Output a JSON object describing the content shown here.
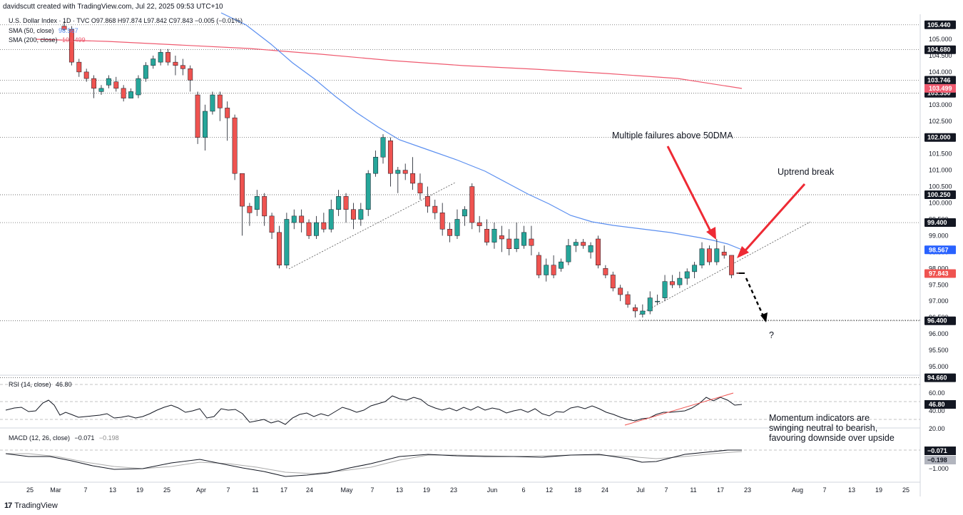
{
  "header": {
    "credit": "davidscutt created with TradingView.com, Jul 22, 2025 09:53 UTC+10",
    "symbol_line": "U.S. Dollar Index · 1D · TVC  O97.868  H97.874  L97.842  C97.843  −0.005 (−0.01%)",
    "sma50_label": "SMA (50, close)",
    "sma50_value": "98.567",
    "sma200_label": "SMA (200, close)",
    "sma200_value": "103.499"
  },
  "rsi_legend": "RSI (14, close)",
  "rsi_value": "46.80",
  "macd_legend": "MACD (12, 26, close)",
  "macd_value": "−0.071",
  "macd_signal_value": "−0.198",
  "annotations": {
    "failures": "Multiple failures above 50DMA",
    "uptrend": "Uptrend break",
    "question": "?",
    "momentum_1": "Momentum indicators are",
    "momentum_2": "swinging neutral to bearish,",
    "momentum_3": "favouring downside over upside"
  },
  "brand": "TradingView",
  "colors": {
    "up": "#26a69a",
    "down": "#ef5350",
    "sma50": "#5b8ff0",
    "sma200": "#ef5a6f",
    "annotation_arrow": "#ee2a34"
  },
  "chart_data": {
    "type": "candlestick",
    "title": "U.S. Dollar Index",
    "y_axis_ticks": [
      "105.000",
      "104.500",
      "104.000",
      "103.500",
      "103.000",
      "102.500",
      "102.000",
      "101.500",
      "101.000",
      "100.500",
      "100.000",
      "99.500",
      "99.000",
      "98.500",
      "98.000",
      "97.500",
      "97.000",
      "96.500",
      "96.000",
      "95.500",
      "95.000"
    ],
    "price_levels": [
      "105.440",
      "104.680",
      "103.746",
      "103.350",
      "102.000",
      "100.250",
      "99.400",
      "96.400",
      "94.660"
    ],
    "current_price": "97.843",
    "sma50_value": "98.567",
    "sma200_value": "103.499",
    "x_axis_labels": [
      "25",
      "Mar",
      "7",
      "13",
      "19",
      "25",
      "Apr",
      "7",
      "11",
      "17",
      "24",
      "May",
      "7",
      "13",
      "19",
      "23",
      "Jun",
      "6",
      "12",
      "18",
      "24",
      "Jul",
      "7",
      "11",
      "17",
      "23",
      "Aug",
      "7",
      "13",
      "19",
      "25"
    ],
    "candles": [
      [
        105.4,
        105.3,
        105.55,
        105.25
      ],
      [
        105.3,
        104.3,
        105.4,
        104.2
      ],
      [
        104.3,
        104.0,
        104.4,
        103.85
      ],
      [
        104.0,
        103.8,
        104.1,
        103.7
      ],
      [
        103.8,
        103.5,
        103.9,
        103.2
      ],
      [
        103.4,
        103.5,
        103.6,
        103.3
      ],
      [
        103.6,
        103.8,
        103.9,
        103.5
      ],
      [
        103.7,
        103.5,
        103.85,
        103.4
      ],
      [
        103.5,
        103.2,
        103.6,
        103.1
      ],
      [
        103.2,
        103.4,
        103.5,
        103.2
      ],
      [
        103.3,
        103.8,
        103.9,
        103.2
      ],
      [
        103.8,
        104.2,
        104.3,
        103.7
      ],
      [
        104.2,
        104.4,
        104.5,
        104.1
      ],
      [
        104.3,
        104.6,
        104.7,
        104.2
      ],
      [
        104.6,
        104.3,
        104.7,
        104.2
      ],
      [
        104.3,
        104.2,
        104.5,
        103.9
      ],
      [
        104.2,
        104.1,
        104.4,
        103.9
      ],
      [
        104.1,
        103.75,
        104.2,
        103.4
      ],
      [
        103.3,
        102.0,
        103.4,
        101.8
      ],
      [
        102.0,
        102.8,
        103.0,
        101.6
      ],
      [
        102.8,
        103.3,
        103.4,
        102.7
      ],
      [
        103.3,
        102.9,
        103.4,
        102.5
      ],
      [
        102.9,
        102.6,
        103.1,
        101.9
      ],
      [
        102.6,
        100.9,
        102.7,
        100.7
      ],
      [
        100.9,
        99.9,
        100.8,
        99.0
      ],
      [
        99.9,
        99.7,
        100.0,
        99.3
      ],
      [
        99.8,
        100.2,
        100.4,
        99.6
      ],
      [
        100.2,
        99.6,
        100.3,
        99.3
      ],
      [
        99.6,
        99.1,
        99.7,
        98.9
      ],
      [
        99.1,
        98.1,
        99.3,
        98.0
      ],
      [
        98.1,
        99.5,
        99.7,
        98.0
      ],
      [
        99.4,
        99.6,
        99.8,
        99.2
      ],
      [
        99.6,
        99.4,
        99.8,
        99.1
      ],
      [
        99.4,
        99.0,
        99.5,
        98.9
      ],
      [
        99.0,
        99.4,
        99.6,
        98.9
      ],
      [
        99.4,
        99.2,
        99.7,
        99.1
      ],
      [
        99.2,
        99.8,
        100.1,
        99.1
      ],
      [
        99.8,
        100.2,
        100.4,
        99.6
      ],
      [
        100.2,
        99.8,
        100.3,
        99.4
      ],
      [
        99.8,
        99.5,
        100.0,
        99.2
      ],
      [
        99.5,
        99.8,
        100.0,
        99.3
      ],
      [
        99.8,
        100.9,
        101.0,
        99.6
      ],
      [
        100.9,
        101.4,
        101.6,
        100.8
      ],
      [
        101.4,
        102.0,
        102.1,
        101.2
      ],
      [
        101.9,
        100.9,
        102.0,
        100.5
      ],
      [
        100.9,
        101.0,
        101.1,
        100.3
      ],
      [
        101.0,
        100.9,
        101.2,
        100.7
      ],
      [
        100.9,
        100.6,
        101.4,
        100.4
      ],
      [
        100.6,
        100.3,
        100.9,
        100.1
      ],
      [
        100.2,
        99.9,
        100.5,
        99.7
      ],
      [
        99.9,
        99.7,
        100.1,
        99.5
      ],
      [
        99.7,
        99.2,
        100.0,
        99.0
      ],
      [
        99.2,
        99.0,
        99.4,
        98.8
      ],
      [
        99.0,
        99.5,
        99.8,
        98.9
      ],
      [
        99.6,
        99.8,
        99.9,
        99.3
      ],
      [
        100.5,
        99.4,
        100.6,
        99.2
      ],
      [
        99.4,
        99.3,
        99.6,
        99.1
      ],
      [
        99.2,
        98.8,
        99.5,
        98.7
      ],
      [
        98.8,
        99.2,
        99.4,
        98.6
      ],
      [
        99.0,
        98.9,
        99.3,
        98.5
      ],
      [
        98.9,
        98.6,
        99.2,
        98.4
      ],
      [
        98.6,
        98.9,
        99.4,
        98.5
      ],
      [
        98.7,
        99.1,
        99.3,
        98.6
      ],
      [
        98.9,
        98.7,
        99.3,
        98.4
      ],
      [
        98.4,
        97.8,
        98.5,
        97.7
      ],
      [
        97.8,
        98.1,
        98.3,
        97.6
      ],
      [
        98.1,
        97.8,
        98.4,
        97.7
      ],
      [
        98.0,
        98.2,
        98.3,
        97.9
      ],
      [
        98.2,
        98.7,
        98.9,
        98.1
      ],
      [
        98.7,
        98.8,
        98.9,
        98.5
      ],
      [
        98.8,
        98.7,
        98.9,
        98.6
      ],
      [
        98.5,
        98.7,
        98.8,
        98.3
      ],
      [
        98.9,
        98.1,
        99.0,
        98.0
      ],
      [
        98.0,
        97.8,
        98.1,
        97.7
      ],
      [
        97.8,
        97.4,
        97.9,
        97.3
      ],
      [
        97.4,
        97.2,
        97.5,
        97.0
      ],
      [
        97.2,
        96.9,
        97.3,
        96.8
      ],
      [
        96.8,
        96.7,
        96.9,
        96.5
      ],
      [
        96.6,
        96.7,
        96.9,
        96.5
      ],
      [
        96.7,
        97.1,
        97.3,
        96.6
      ],
      [
        97.0,
        97.0,
        97.2,
        96.9
      ],
      [
        97.1,
        97.6,
        97.8,
        97.0
      ],
      [
        97.6,
        97.5,
        97.8,
        97.4
      ],
      [
        97.5,
        97.7,
        97.9,
        97.4
      ],
      [
        97.7,
        97.9,
        98.0,
        97.5
      ],
      [
        97.9,
        98.1,
        98.2,
        97.7
      ],
      [
        98.1,
        98.6,
        98.8,
        98.0
      ],
      [
        98.6,
        98.2,
        98.7,
        98.1
      ],
      [
        98.2,
        98.6,
        98.9,
        98.1
      ],
      [
        98.5,
        98.4,
        98.7,
        98.3
      ],
      [
        98.4,
        97.8,
        98.4,
        97.7
      ],
      [
        97.87,
        97.84,
        97.87,
        97.84
      ]
    ]
  }
}
